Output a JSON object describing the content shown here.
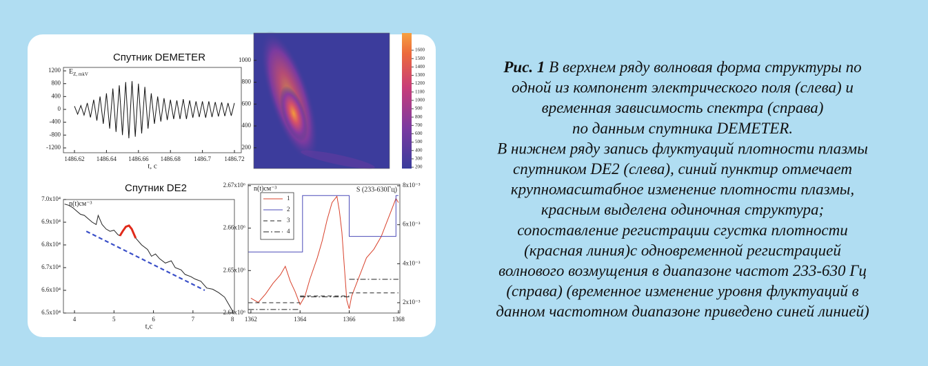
{
  "chart_data": [
    {
      "type": "line",
      "title": "Спутник DEMETER",
      "y_label": "E",
      "y_label_sub": "Z",
      "y_label_unit": ", mkV",
      "x_label": "t, c",
      "color": "#111111",
      "x": [
        1486.62,
        1486.622,
        1486.624,
        1486.626,
        1486.628,
        1486.63,
        1486.632,
        1486.634,
        1486.636,
        1486.638,
        1486.64,
        1486.642,
        1486.644,
        1486.646,
        1486.648,
        1486.65,
        1486.652,
        1486.654,
        1486.656,
        1486.658,
        1486.66,
        1486.662,
        1486.664,
        1486.666,
        1486.668,
        1486.67,
        1486.672,
        1486.674,
        1486.676,
        1486.678,
        1486.68,
        1486.682,
        1486.684,
        1486.686,
        1486.688,
        1486.69,
        1486.692,
        1486.694,
        1486.696,
        1486.698,
        1486.7,
        1486.702,
        1486.704,
        1486.706,
        1486.708,
        1486.71,
        1486.712,
        1486.714,
        1486.716,
        1486.718,
        1486.72
      ],
      "values": [
        100,
        -150,
        120,
        -180,
        200,
        -250,
        300,
        -350,
        400,
        -450,
        500,
        -600,
        650,
        -700,
        750,
        -800,
        850,
        -900,
        880,
        -850,
        800,
        -750,
        700,
        -600,
        500,
        -450,
        400,
        -380,
        350,
        -330,
        300,
        -300,
        280,
        -300,
        320,
        -300,
        280,
        -260,
        250,
        -240,
        250,
        -260,
        250,
        -240,
        230,
        -220,
        220,
        -210,
        200,
        -200,
        200
      ],
      "xlim": [
        1486.6131,
        1486.7243
      ],
      "xticks": [
        1486.62,
        1486.64,
        1486.66,
        1486.68,
        1486.7,
        1486.72
      ],
      "ylim": [
        -1350,
        1307
      ],
      "yticks": [
        -1200,
        -800,
        -400,
        0,
        400,
        800,
        1200
      ]
    },
    {
      "type": "heatmap",
      "ylim": [
        10,
        1250
      ],
      "yticks": [
        200,
        400,
        600,
        800,
        1000
      ],
      "clim": [
        184,
        1806
      ],
      "cticks": [
        200,
        300,
        400,
        500,
        600,
        700,
        800,
        900,
        1000,
        1100,
        1200,
        1300,
        1400,
        1500,
        1600
      ]
    },
    {
      "type": "line",
      "title": "Спутник DE2",
      "y_label": "n(t)см⁻³",
      "x_label": "t,c",
      "series": [
        {
          "color": "#222222",
          "style": "solid",
          "x": [
            3.75,
            3.85,
            3.95,
            4.05,
            4.15,
            4.25,
            4.35,
            4.45,
            4.55,
            4.6,
            4.7,
            4.8,
            4.9,
            5.0,
            5.1,
            5.15,
            5.35,
            5.55,
            5.7,
            5.85,
            5.95,
            6.05,
            6.15,
            6.3,
            6.45,
            6.55,
            6.7,
            6.8,
            6.95,
            7.05,
            7.2,
            7.35,
            7.5,
            7.65,
            7.8,
            7.9,
            8.0
          ],
          "values": [
            69800,
            69750,
            69650,
            69500,
            69350,
            69300,
            69150,
            69000,
            68900,
            69300,
            68900,
            68700,
            68600,
            68650,
            68450,
            68400,
            null,
            68300,
            68000,
            67800,
            67500,
            67600,
            67400,
            67200,
            67300,
            67000,
            66900,
            66700,
            66600,
            66500,
            66400,
            66100,
            66050,
            65900,
            65700,
            65400,
            65100
          ]
        },
        {
          "color": "#e02a1a",
          "style": "bold",
          "x": [
            5.15,
            5.22,
            5.3,
            5.38,
            5.45,
            5.5,
            5.55
          ],
          "values": [
            68400,
            68600,
            68800,
            68850,
            68700,
            68500,
            68300
          ]
        },
        {
          "color": "#3a4fc8",
          "style": "dashed",
          "x": [
            4.3,
            7.3
          ],
          "values": [
            68600,
            66000
          ]
        }
      ],
      "xlim": [
        3.72,
        8.05
      ],
      "xticks": [
        4,
        5,
        6,
        7,
        8
      ],
      "ylim": [
        65000,
        70000
      ],
      "yticks": [
        {
          "value": 65000,
          "label": "6.5x10⁴"
        },
        {
          "value": 66000,
          "label": "6.6x10⁴"
        },
        {
          "value": 67000,
          "label": "6.7x10⁴"
        },
        {
          "value": 68000,
          "label": "6.8x10⁴"
        },
        {
          "value": 69000,
          "label": "6.9x10⁴"
        },
        {
          "value": 70000,
          "label": "7.0x10⁴"
        }
      ]
    },
    {
      "type": "line",
      "y_label": "n(t)см⁻³",
      "y2_label": "S (233-630Гц)",
      "series": [
        {
          "name": "1",
          "color": "#d8402a",
          "style": "solid",
          "axis": "y",
          "x": [
            1362.0,
            1362.3,
            1362.6,
            1362.9,
            1363.2,
            1363.4,
            1363.6,
            1363.8,
            1364.0,
            1364.2,
            1364.4,
            1364.7,
            1364.9,
            1365.1,
            1365.3,
            1365.5,
            1365.6,
            1365.7,
            1365.8,
            1365.9,
            1366.0,
            1366.1,
            1366.3,
            1366.5,
            1366.7,
            1367.0,
            1367.3,
            1367.5,
            1367.7,
            1367.9,
            1368.0
          ],
          "values": [
            2643500,
            2642500,
            2644500,
            2647000,
            2649000,
            2651000,
            2647500,
            2645000,
            2642000,
            2644000,
            2648000,
            2653000,
            2657000,
            2662000,
            2666000,
            2667500,
            2664000,
            2659000,
            2651000,
            2643000,
            2641000,
            2644000,
            2647000,
            2650000,
            2653000,
            2655000,
            2658000,
            2661000,
            2664000,
            2667000,
            2666000
          ]
        },
        {
          "name": "2",
          "color": "#4a4ab8",
          "style": "solid",
          "axis": "y2",
          "x": [
            1361.9,
            1364.1,
            1364.1,
            1366.0,
            1366.0,
            1367.9,
            1367.9,
            1368.0
          ],
          "values": [
            0.0046,
            0.0046,
            0.0075,
            0.0075,
            0.0054,
            0.0054,
            0.0075,
            0.0075
          ]
        },
        {
          "name": "3",
          "color": "#222222",
          "style": "dashed",
          "axis": "y2",
          "x": [
            1361.9,
            1364.0,
            null,
            1364.0,
            1366.0,
            null,
            1366.0,
            1368.0
          ],
          "values": [
            0.002,
            0.002,
            null,
            0.00235,
            0.00235,
            null,
            0.0025,
            0.0025
          ]
        },
        {
          "name": "4",
          "color": "#222222",
          "style": "dash-dot",
          "axis": "y2",
          "x": [
            1361.9,
            1364.0,
            null,
            1364.0,
            1366.0,
            null,
            1366.0,
            1368.0
          ],
          "values": [
            0.00165,
            0.00165,
            null,
            0.0023,
            0.0023,
            null,
            0.0032,
            0.0032
          ]
        }
      ],
      "xlim": [
        1361.89,
        1368.06
      ],
      "xticks": [
        1362,
        1364,
        1366,
        1368
      ],
      "ylim": [
        2640000,
        2670300
      ],
      "yticks": [
        {
          "value": 2640000,
          "label": "2.64x10⁶"
        },
        {
          "value": 2650000,
          "label": "2.65x10⁶"
        },
        {
          "value": 2660000,
          "label": "2.66x10⁶"
        },
        {
          "value": 2670000,
          "label": "2.67x10⁶"
        }
      ],
      "y2lim": [
        0.00147,
        0.00807
      ],
      "y2ticks": [
        {
          "value": 0.002,
          "label": "2x10⁻³"
        },
        {
          "value": 0.004,
          "label": "4x10⁻³"
        },
        {
          "value": 0.006,
          "label": "6x10⁻³"
        },
        {
          "value": 0.008,
          "label": "8x10⁻³"
        }
      ]
    }
  ],
  "caption": {
    "label": "Рис. 1",
    "lines": [
      " В верхнем ряду волновая форма структуры по",
      "одной из компонент электрического поля (слева) и",
      "временная зависимость спектра (справа)",
      "по данным спутника DEMETER.",
      "В нижнем ряду запись флуктуаций плотности плазмы",
      "спутником DE2 (слева), синий пунктир отмечает",
      "крупномасштабное изменение плотности плазмы,",
      "красным выделена одиночная структура;",
      "сопоставление регистрации сгустка плотности",
      "(красная линия)с одновременной регистрацией",
      "волнового возмущения в диапазоне частот 233-630 Гц",
      "(справа) (временное изменение уровня флуктуаций в",
      "данном частотном диапазоне приведено синей линией)"
    ]
  }
}
